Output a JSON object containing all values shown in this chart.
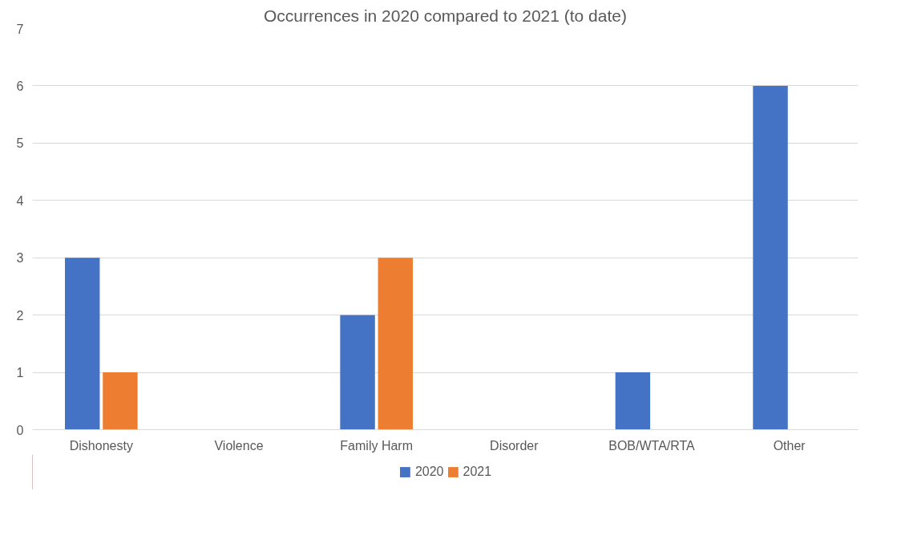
{
  "chart_data": {
    "type": "bar",
    "title": "Occurrences in 2020 compared to 2021 (to date)",
    "categories": [
      "Dishonesty",
      "Violence",
      "Family Harm",
      "Disorder",
      "BOB/WTA/RTA",
      "Other"
    ],
    "series": [
      {
        "name": "2020",
        "color": "#4472c4",
        "values": [
          3,
          0,
          2,
          0,
          1,
          6
        ]
      },
      {
        "name": "2021",
        "color": "#ed7d31",
        "values": [
          1,
          0,
          3,
          0,
          0,
          0
        ]
      }
    ],
    "ylim": [
      0,
      7
    ],
    "yticks": [
      0,
      1,
      2,
      3,
      4,
      5,
      6,
      7
    ],
    "grid": "y",
    "legend": "bottom"
  }
}
